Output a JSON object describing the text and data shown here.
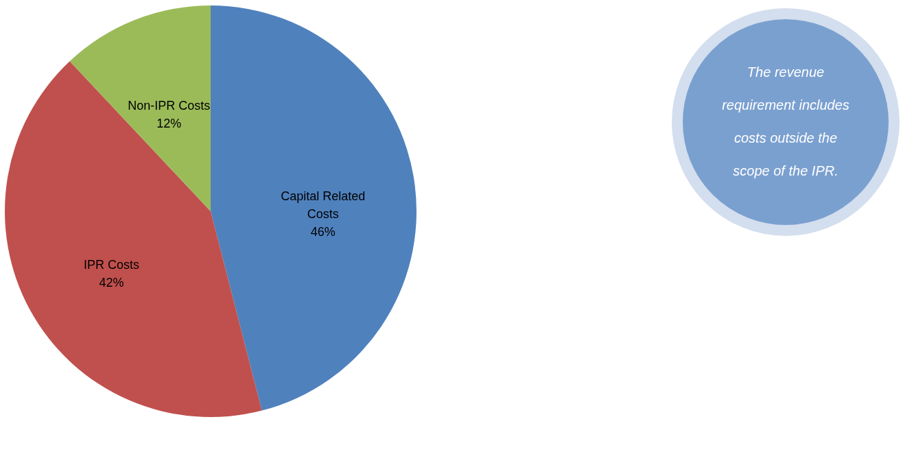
{
  "chart_data": {
    "type": "pie",
    "categories": [
      "Capital Related Costs",
      "IPR Costs",
      "Non-IPR Costs"
    ],
    "values": [
      46,
      42,
      12
    ],
    "value_labels": [
      "46%",
      "42%",
      "12%"
    ],
    "colors": [
      "#4f81bd",
      "#c0504d",
      "#9bbb59"
    ],
    "annotations": [
      "The revenue requirement includes costs outside the scope of the IPR."
    ]
  }
}
